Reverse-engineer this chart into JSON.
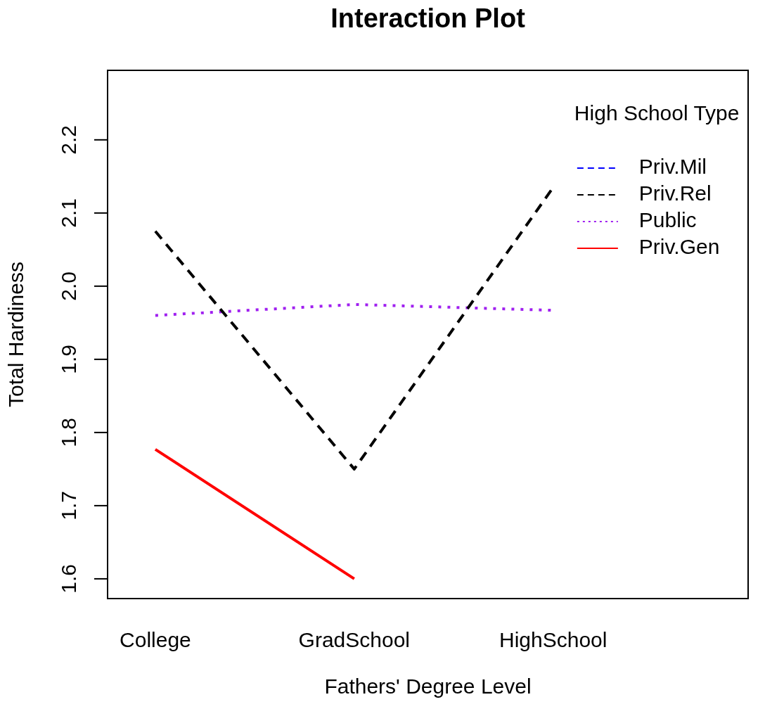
{
  "chart_data": {
    "type": "line",
    "title": "Interaction Plot",
    "xlabel": "Fathers' Degree Level",
    "ylabel": "Total Hardiness",
    "legend_title": "High School Type",
    "categories": [
      "College",
      "GradSchool",
      "HighSchool"
    ],
    "series": [
      {
        "name": "Priv.Mil",
        "color": "#0000ff",
        "line_style": "dashed",
        "values": [
          null,
          null,
          null
        ]
      },
      {
        "name": "Priv.Rel",
        "color": "#000000",
        "line_style": "dashed",
        "values": [
          2.075,
          1.75,
          2.135
        ]
      },
      {
        "name": "Public",
        "color": "#a020f0",
        "line_style": "dotted",
        "values": [
          1.96,
          1.975,
          1.967
        ]
      },
      {
        "name": "Priv.Gen",
        "color": "#ff0000",
        "line_style": "solid",
        "values": [
          1.777,
          1.6,
          null
        ]
      }
    ],
    "ylim": [
      1.573,
      2.295
    ],
    "yticks": [
      1.6,
      1.7,
      1.8,
      1.9,
      {
        "value": 2,
        "label": "2.0"
      },
      2.1,
      2.2
    ],
    "legend": "top right",
    "marker": "none"
  }
}
